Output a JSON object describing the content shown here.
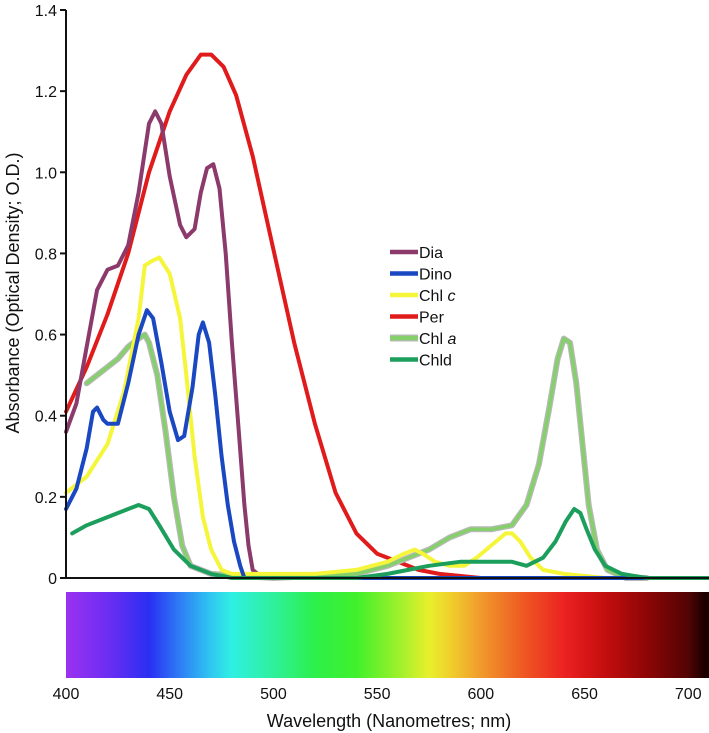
{
  "chart_data": {
    "type": "line",
    "xlabel": "Wavelength (Nanometres; nm)",
    "ylabel": "Absorbance (Optical Density; O.D.)",
    "xlim": [
      400,
      710
    ],
    "ylim": [
      0,
      1.4
    ],
    "x_ticks": [
      400,
      450,
      500,
      550,
      600,
      650,
      700
    ],
    "y_ticks": [
      0,
      0.2,
      0.4,
      0.6,
      0.8,
      1.0,
      1.2,
      1.4
    ],
    "y_tick_labels": [
      "0",
      "0.2",
      "0.4",
      "0.6",
      "0.8",
      "1.0",
      "1.2",
      "1.4"
    ],
    "grid": false,
    "legend_position": "center",
    "spectrum_bar": true,
    "series": [
      {
        "name": "Dia",
        "label_base": "Dia",
        "label_italic": "",
        "color": "#8b3a6b",
        "points": [
          [
            400,
            0.36
          ],
          [
            405,
            0.43
          ],
          [
            410,
            0.57
          ],
          [
            415,
            0.71
          ],
          [
            420,
            0.76
          ],
          [
            425,
            0.77
          ],
          [
            430,
            0.82
          ],
          [
            435,
            0.95
          ],
          [
            440,
            1.12
          ],
          [
            443,
            1.15
          ],
          [
            446,
            1.12
          ],
          [
            450,
            0.99
          ],
          [
            455,
            0.87
          ],
          [
            458,
            0.84
          ],
          [
            462,
            0.86
          ],
          [
            465,
            0.95
          ],
          [
            468,
            1.01
          ],
          [
            471,
            1.02
          ],
          [
            474,
            0.96
          ],
          [
            477,
            0.8
          ],
          [
            480,
            0.58
          ],
          [
            483,
            0.38
          ],
          [
            486,
            0.18
          ],
          [
            488,
            0.08
          ],
          [
            490,
            0.02
          ],
          [
            495,
            0.0
          ],
          [
            710,
            0.0
          ]
        ]
      },
      {
        "name": "Dino",
        "label_base": "Dino",
        "label_italic": "",
        "color": "#1a47c2",
        "points": [
          [
            400,
            0.17
          ],
          [
            405,
            0.22
          ],
          [
            410,
            0.32
          ],
          [
            413,
            0.41
          ],
          [
            415,
            0.42
          ],
          [
            418,
            0.39
          ],
          [
            420,
            0.38
          ],
          [
            425,
            0.38
          ],
          [
            430,
            0.48
          ],
          [
            435,
            0.6
          ],
          [
            439,
            0.66
          ],
          [
            442,
            0.64
          ],
          [
            446,
            0.53
          ],
          [
            450,
            0.41
          ],
          [
            454,
            0.34
          ],
          [
            457,
            0.35
          ],
          [
            461,
            0.47
          ],
          [
            464,
            0.6
          ],
          [
            466,
            0.63
          ],
          [
            469,
            0.58
          ],
          [
            472,
            0.45
          ],
          [
            475,
            0.3
          ],
          [
            478,
            0.18
          ],
          [
            481,
            0.09
          ],
          [
            484,
            0.03
          ],
          [
            486,
            0.0
          ],
          [
            710,
            0.0
          ]
        ]
      },
      {
        "name": "Chl c",
        "label_base": "Chl ",
        "label_italic": "c",
        "color": "#f5f53a",
        "points": [
          [
            400,
            0.21
          ],
          [
            410,
            0.25
          ],
          [
            420,
            0.33
          ],
          [
            428,
            0.46
          ],
          [
            435,
            0.64
          ],
          [
            438,
            0.77
          ],
          [
            441,
            0.78
          ],
          [
            445,
            0.79
          ],
          [
            450,
            0.75
          ],
          [
            455,
            0.64
          ],
          [
            458,
            0.5
          ],
          [
            462,
            0.3
          ],
          [
            466,
            0.15
          ],
          [
            470,
            0.07
          ],
          [
            475,
            0.02
          ],
          [
            480,
            0.01
          ],
          [
            500,
            0.01
          ],
          [
            520,
            0.01
          ],
          [
            540,
            0.02
          ],
          [
            555,
            0.04
          ],
          [
            563,
            0.06
          ],
          [
            568,
            0.07
          ],
          [
            572,
            0.06
          ],
          [
            578,
            0.04
          ],
          [
            585,
            0.03
          ],
          [
            592,
            0.03
          ],
          [
            598,
            0.05
          ],
          [
            605,
            0.08
          ],
          [
            612,
            0.11
          ],
          [
            615,
            0.11
          ],
          [
            619,
            0.09
          ],
          [
            624,
            0.05
          ],
          [
            630,
            0.02
          ],
          [
            640,
            0.01
          ],
          [
            660,
            0.0
          ],
          [
            710,
            0.0
          ]
        ]
      },
      {
        "name": "Per",
        "label_base": "Per",
        "label_italic": "",
        "color": "#e01b1b",
        "points": [
          [
            400,
            0.41
          ],
          [
            410,
            0.52
          ],
          [
            420,
            0.65
          ],
          [
            430,
            0.8
          ],
          [
            440,
            1.0
          ],
          [
            450,
            1.15
          ],
          [
            458,
            1.24
          ],
          [
            465,
            1.29
          ],
          [
            470,
            1.29
          ],
          [
            476,
            1.26
          ],
          [
            482,
            1.19
          ],
          [
            490,
            1.04
          ],
          [
            500,
            0.81
          ],
          [
            510,
            0.58
          ],
          [
            520,
            0.38
          ],
          [
            530,
            0.21
          ],
          [
            540,
            0.11
          ],
          [
            550,
            0.06
          ],
          [
            560,
            0.04
          ],
          [
            570,
            0.02
          ],
          [
            580,
            0.01
          ],
          [
            600,
            0.0
          ],
          [
            710,
            0.0
          ]
        ]
      },
      {
        "name": "Chl a",
        "label_base": "Chl ",
        "label_italic": "a",
        "color": "#86d06b",
        "points": [
          [
            410,
            0.48
          ],
          [
            415,
            0.5
          ],
          [
            420,
            0.52
          ],
          [
            425,
            0.54
          ],
          [
            430,
            0.57
          ],
          [
            435,
            0.59
          ],
          [
            438,
            0.6
          ],
          [
            440,
            0.58
          ],
          [
            444,
            0.5
          ],
          [
            448,
            0.36
          ],
          [
            452,
            0.2
          ],
          [
            456,
            0.08
          ],
          [
            460,
            0.03
          ],
          [
            470,
            0.01
          ],
          [
            500,
            0.0
          ],
          [
            540,
            0.01
          ],
          [
            555,
            0.03
          ],
          [
            565,
            0.05
          ],
          [
            575,
            0.07
          ],
          [
            585,
            0.1
          ],
          [
            595,
            0.12
          ],
          [
            605,
            0.12
          ],
          [
            615,
            0.13
          ],
          [
            622,
            0.18
          ],
          [
            628,
            0.28
          ],
          [
            633,
            0.42
          ],
          [
            637,
            0.54
          ],
          [
            640,
            0.59
          ],
          [
            643,
            0.58
          ],
          [
            646,
            0.48
          ],
          [
            649,
            0.33
          ],
          [
            652,
            0.18
          ],
          [
            656,
            0.07
          ],
          [
            661,
            0.02
          ],
          [
            670,
            0.0
          ],
          [
            680,
            0.0
          ]
        ]
      },
      {
        "name": "Chld",
        "label_base": "Chld",
        "label_italic": "",
        "color": "#1c9e5c",
        "points": [
          [
            403,
            0.11
          ],
          [
            410,
            0.13
          ],
          [
            420,
            0.15
          ],
          [
            430,
            0.17
          ],
          [
            435,
            0.18
          ],
          [
            440,
            0.17
          ],
          [
            445,
            0.13
          ],
          [
            452,
            0.07
          ],
          [
            460,
            0.03
          ],
          [
            470,
            0.01
          ],
          [
            480,
            0.0
          ],
          [
            540,
            0.0
          ],
          [
            555,
            0.01
          ],
          [
            565,
            0.02
          ],
          [
            575,
            0.03
          ],
          [
            590,
            0.04
          ],
          [
            605,
            0.04
          ],
          [
            615,
            0.04
          ],
          [
            622,
            0.03
          ],
          [
            630,
            0.05
          ],
          [
            636,
            0.09
          ],
          [
            641,
            0.14
          ],
          [
            645,
            0.17
          ],
          [
            648,
            0.16
          ],
          [
            651,
            0.12
          ],
          [
            655,
            0.07
          ],
          [
            660,
            0.03
          ],
          [
            668,
            0.01
          ],
          [
            680,
            0.0
          ],
          [
            710,
            0.0
          ]
        ]
      }
    ],
    "spectrum_stops": [
      [
        400,
        "#9b31f0"
      ],
      [
        420,
        "#6d2ef2"
      ],
      [
        440,
        "#2a2ff2"
      ],
      [
        455,
        "#2e7df5"
      ],
      [
        470,
        "#2fc8f0"
      ],
      [
        480,
        "#2ff0e2"
      ],
      [
        500,
        "#2ff09c"
      ],
      [
        520,
        "#2cf04a"
      ],
      [
        540,
        "#40f02c"
      ],
      [
        560,
        "#9cf02c"
      ],
      [
        575,
        "#e8f02c"
      ],
      [
        585,
        "#f0d02c"
      ],
      [
        600,
        "#f09a2c"
      ],
      [
        620,
        "#ee5a22"
      ],
      [
        640,
        "#ec2222"
      ],
      [
        660,
        "#c40d0d"
      ],
      [
        680,
        "#8e0606"
      ],
      [
        700,
        "#520404"
      ],
      [
        708,
        "#1a0000"
      ]
    ]
  }
}
